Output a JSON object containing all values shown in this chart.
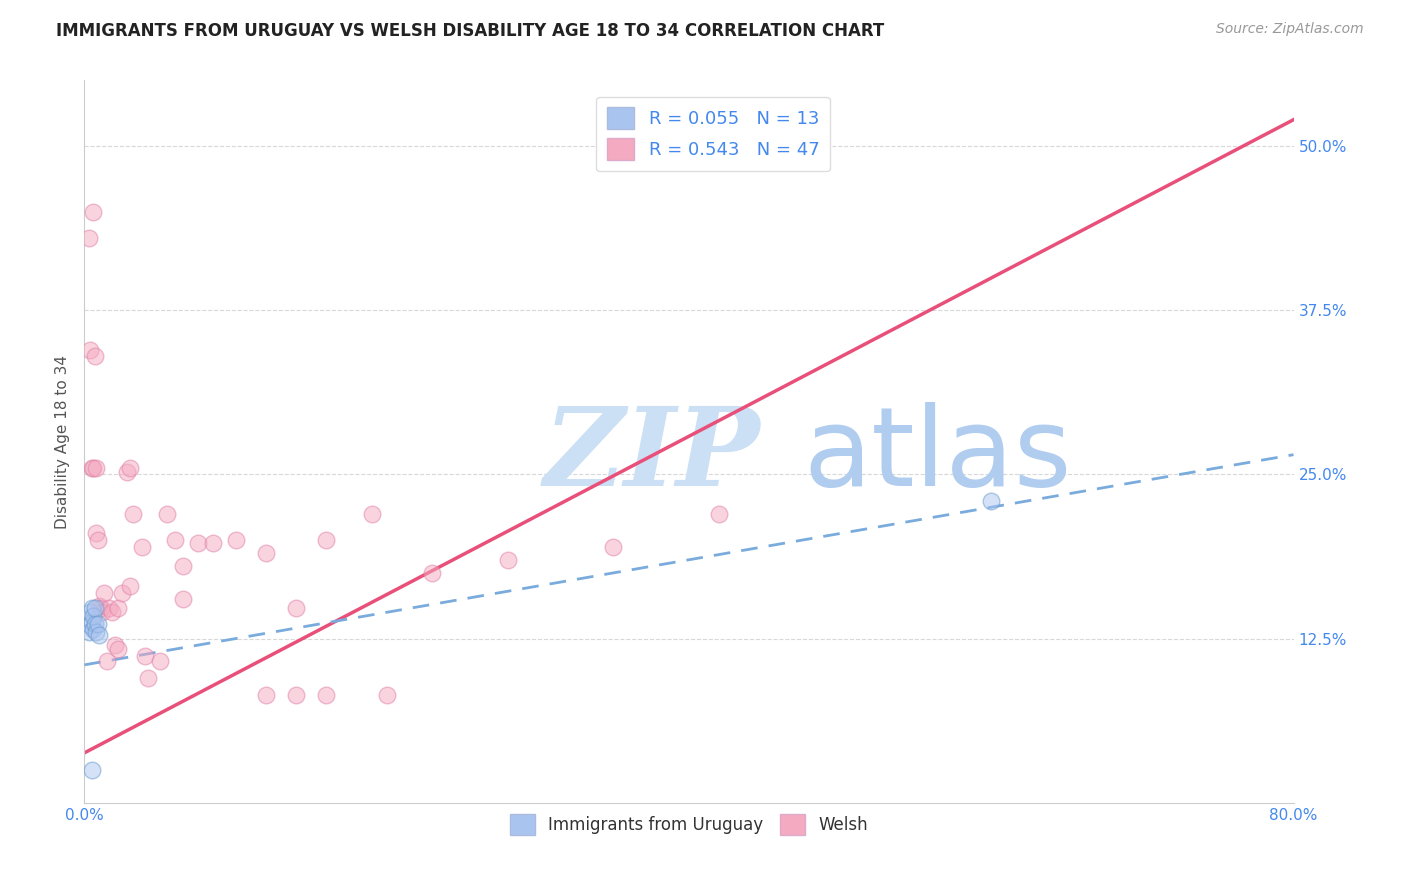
{
  "title": "IMMIGRANTS FROM URUGUAY VS WELSH DISABILITY AGE 18 TO 34 CORRELATION CHART",
  "source": "Source: ZipAtlas.com",
  "ylabel": "Disability Age 18 to 34",
  "xlim": [
    0,
    0.8
  ],
  "ylim": [
    0,
    0.55
  ],
  "xticks": [
    0.0,
    0.1,
    0.2,
    0.3,
    0.4,
    0.5,
    0.6,
    0.7,
    0.8
  ],
  "xticklabels": [
    "0.0%",
    "",
    "",
    "",
    "",
    "",
    "",
    "",
    "80.0%"
  ],
  "yticks": [
    0.0,
    0.125,
    0.25,
    0.375,
    0.5
  ],
  "yticklabels": [
    "",
    "12.5%",
    "25.0%",
    "37.5%",
    "50.0%"
  ],
  "legend1_color": "#aac4f0",
  "legend2_color": "#f4aac0",
  "blue_scatter_x": [
    0.003,
    0.004,
    0.004,
    0.005,
    0.005,
    0.006,
    0.006,
    0.007,
    0.007,
    0.008,
    0.009,
    0.01,
    0.6
  ],
  "blue_scatter_y": [
    0.13,
    0.135,
    0.145,
    0.138,
    0.148,
    0.132,
    0.142,
    0.136,
    0.148,
    0.13,
    0.136,
    0.128,
    0.23
  ],
  "blue_extra_x": [
    0.005
  ],
  "blue_extra_y": [
    0.025
  ],
  "pink_scatter_x": [
    0.003,
    0.004,
    0.005,
    0.006,
    0.006,
    0.007,
    0.008,
    0.008,
    0.009,
    0.01,
    0.011,
    0.012,
    0.013,
    0.015,
    0.016,
    0.018,
    0.02,
    0.022,
    0.022,
    0.025,
    0.028,
    0.03,
    0.032,
    0.038,
    0.04,
    0.042,
    0.05,
    0.055,
    0.06,
    0.065,
    0.075,
    0.085,
    0.1,
    0.12,
    0.14,
    0.16,
    0.19,
    0.23,
    0.28,
    0.35,
    0.42,
    0.03,
    0.065,
    0.12,
    0.16,
    0.2,
    0.14
  ],
  "pink_scatter_y": [
    0.43,
    0.345,
    0.255,
    0.45,
    0.255,
    0.34,
    0.255,
    0.205,
    0.2,
    0.15,
    0.148,
    0.145,
    0.16,
    0.108,
    0.148,
    0.145,
    0.12,
    0.117,
    0.148,
    0.16,
    0.252,
    0.255,
    0.22,
    0.195,
    0.112,
    0.095,
    0.108,
    0.22,
    0.2,
    0.18,
    0.198,
    0.198,
    0.2,
    0.19,
    0.148,
    0.2,
    0.22,
    0.175,
    0.185,
    0.195,
    0.22,
    0.165,
    0.155,
    0.082,
    0.082,
    0.082,
    0.082
  ],
  "blue_line_x0": 0.0,
  "blue_line_y0": 0.105,
  "blue_line_x1": 0.8,
  "blue_line_y1": 0.265,
  "pink_line_x0": 0.0,
  "pink_line_y0": 0.038,
  "pink_line_x1": 0.8,
  "pink_line_y1": 0.52,
  "watermark_zip": "ZIP",
  "watermark_atlas": "atlas",
  "watermark_color_zip": "#cce0f5",
  "watermark_color_atlas": "#b0ccee",
  "bg_color": "#ffffff",
  "grid_color": "#d8d8d8",
  "title_color": "#222222",
  "axis_label_color": "#555555",
  "tick_color": "#4488ee",
  "marker_size": 12,
  "marker_alpha": 0.5,
  "line_pink_color": "#e8507a",
  "line_blue_color": "#7aabdd",
  "line_blue_style": "--",
  "line_pink_style": "-",
  "legend_text_color": "#4488ee"
}
